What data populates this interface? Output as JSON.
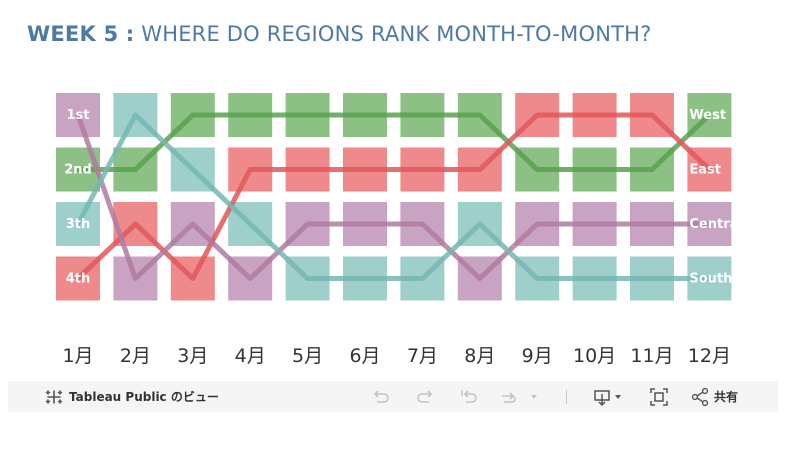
{
  "title": {
    "week": "WEEK 5 :",
    "question": " WHERE DO REGIONS RANK MONTH-TO-MONTH?"
  },
  "chart_data": {
    "type": "bump",
    "categories": [
      "1月",
      "2月",
      "3月",
      "4月",
      "5月",
      "6月",
      "7月",
      "8月",
      "9月",
      "10月",
      "11月",
      "12月"
    ],
    "rank_labels": [
      "1st",
      "2nd",
      "3th",
      "4th"
    ],
    "series": [
      {
        "name": "West",
        "label": "West",
        "color": "#59a14f",
        "tile_color": "#8cc084",
        "ranks": [
          2,
          2,
          1,
          1,
          1,
          1,
          1,
          1,
          2,
          2,
          2,
          1
        ]
      },
      {
        "name": "East",
        "label": "East",
        "color": "#e15759",
        "tile_color": "#ee8a8b",
        "ranks": [
          4,
          3,
          4,
          2,
          2,
          2,
          2,
          2,
          1,
          1,
          1,
          2
        ]
      },
      {
        "name": "Central",
        "label": "Centra",
        "color": "#b07aa1",
        "tile_color": "#c9a3c2",
        "ranks": [
          1,
          4,
          3,
          4,
          3,
          3,
          3,
          4,
          3,
          3,
          3,
          3
        ]
      },
      {
        "name": "South",
        "label": "South",
        "color": "#76b7b2",
        "tile_color": "#9ecfcb",
        "ranks": [
          3,
          1,
          2,
          3,
          4,
          4,
          4,
          3,
          4,
          4,
          4,
          4
        ]
      }
    ]
  },
  "toolbar": {
    "tableau_icon": "tableau-logo-icon",
    "tableau_label": "Tableau Public のビュー",
    "share_label": "共有",
    "icons": [
      "undo-icon",
      "redo-icon",
      "revert-icon",
      "pause-icon",
      "download-icon",
      "fullscreen-icon",
      "share-icon"
    ]
  }
}
